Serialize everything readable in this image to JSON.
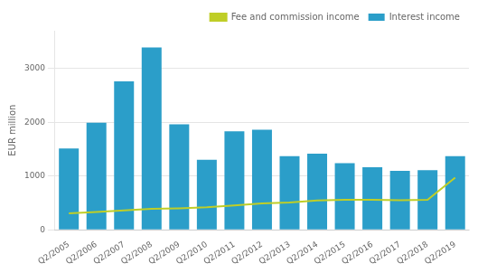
{
  "chart_data": {
    "type": "bar",
    "categories": [
      "Q2/2005",
      "Q2/2006",
      "Q2/2007",
      "Q2/2008",
      "Q2/2009",
      "Q2/2010",
      "Q2/2011",
      "Q2/2012",
      "Q2/2013",
      "Q2/2014",
      "Q2/2015",
      "Q2/2016",
      "Q2/2017",
      "Q2/2018",
      "Q2/2019"
    ],
    "series": [
      {
        "name": "Interest income",
        "type": "bar",
        "color": "#2B9EC9",
        "values": [
          1510,
          1990,
          2760,
          3390,
          1960,
          1300,
          1830,
          1860,
          1370,
          1415,
          1240,
          1165,
          1095,
          1110,
          1370
        ]
      },
      {
        "name": "Fee and commission income",
        "type": "line",
        "color": "#BFCE27",
        "values": [
          305,
          330,
          360,
          390,
          400,
          420,
          455,
          490,
          510,
          545,
          560,
          560,
          550,
          560,
          970
        ]
      }
    ],
    "ylabel": "EUR million",
    "ylim": [
      0,
      3700
    ],
    "yticks": [
      0,
      1000,
      2000,
      3000
    ],
    "grid": true,
    "legend": "top"
  }
}
